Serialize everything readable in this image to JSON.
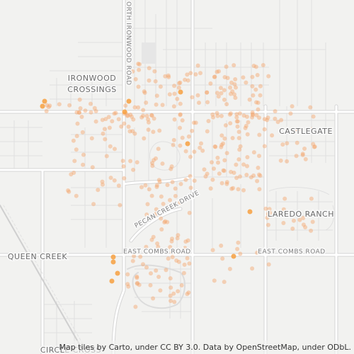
{
  "map": {
    "labels": {
      "road_ironwood": "ORTH IRONWOOD ROAD",
      "ironwood_crossings": [
        "IRONWOOD",
        "CROSSINGS"
      ],
      "castlegate": "CASTLEGATE",
      "laredo_ranch": "LAREDO RANCH",
      "pecan_creek": "PECAN CREEK DRIVE",
      "combs_west": "EAST COMBS ROAD",
      "combs_east": "EAST COMBS ROAD",
      "queen_creek": "QUEEN CREEK",
      "circle_cross": "CIRCLE CROSS"
    },
    "attribution": "Map tiles by Carto, under CC BY 3.0. Data by OpenStreetMap, under ODbL."
  }
}
